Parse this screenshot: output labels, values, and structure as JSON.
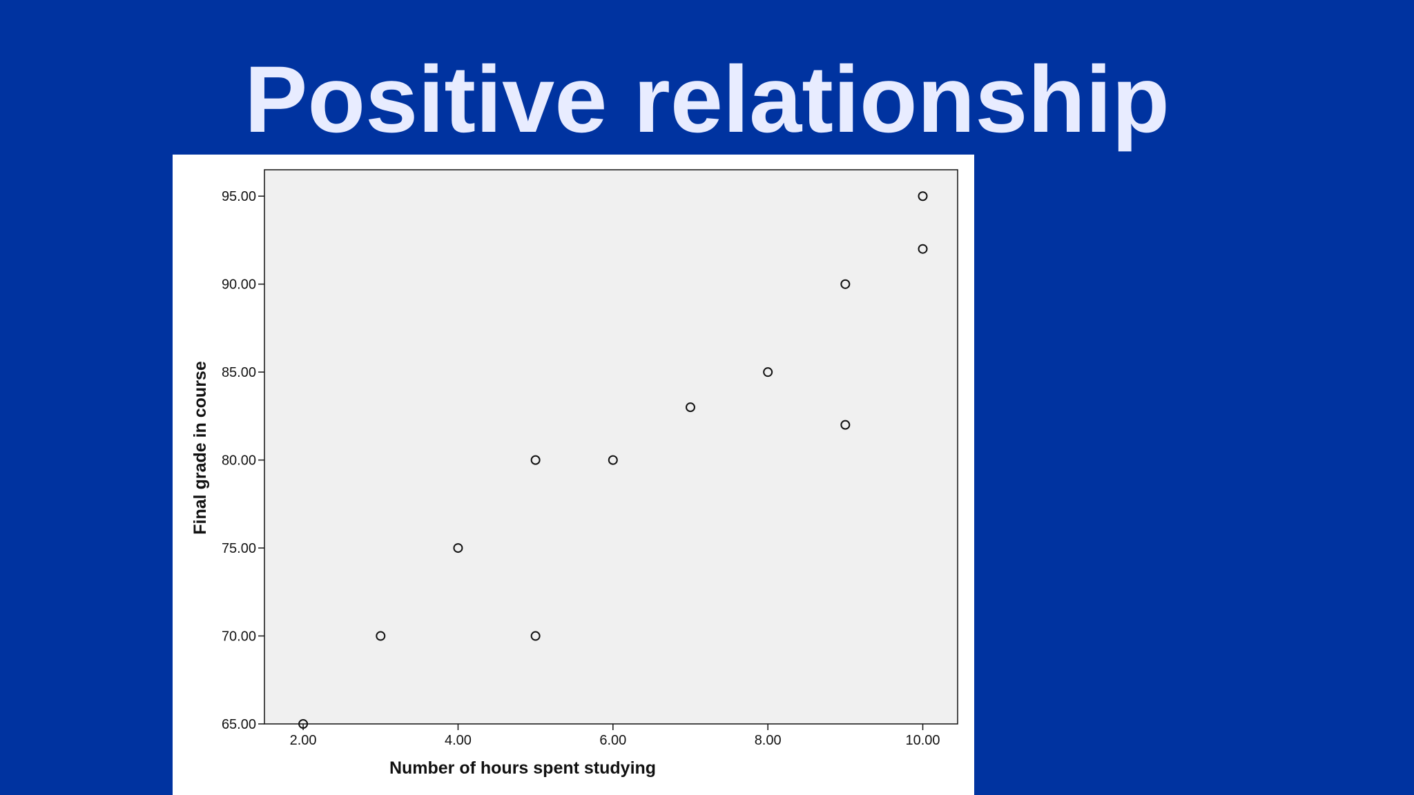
{
  "slide": {
    "title": "Positive relationship"
  },
  "colors": {
    "background": "#0033a0",
    "title_text": "#e8ecff",
    "plot_area": "#f0f0f0",
    "marker_stroke": "#111111"
  },
  "chart_data": {
    "type": "scatter",
    "title": "",
    "xlabel": "Number of hours spent studying",
    "ylabel": "Final grade in course",
    "xlim": [
      1.5,
      10.45
    ],
    "ylim": [
      65,
      96.5
    ],
    "grid": false,
    "x_ticks": [
      2,
      4,
      6,
      8,
      10
    ],
    "y_ticks": [
      65,
      70,
      75,
      80,
      85,
      90,
      95
    ],
    "x_tick_labels": [
      "2.00",
      "4.00",
      "6.00",
      "8.00",
      "10.00"
    ],
    "y_tick_labels": [
      "65.00",
      "70.00",
      "75.00",
      "80.00",
      "85.00",
      "90.00",
      "95.00"
    ],
    "points": [
      {
        "x": 2,
        "y": 65
      },
      {
        "x": 3,
        "y": 70
      },
      {
        "x": 4,
        "y": 75
      },
      {
        "x": 5,
        "y": 70
      },
      {
        "x": 5,
        "y": 80
      },
      {
        "x": 6,
        "y": 80
      },
      {
        "x": 7,
        "y": 83
      },
      {
        "x": 8,
        "y": 85
      },
      {
        "x": 9,
        "y": 82
      },
      {
        "x": 9,
        "y": 90
      },
      {
        "x": 10,
        "y": 92
      },
      {
        "x": 10,
        "y": 95
      }
    ]
  }
}
